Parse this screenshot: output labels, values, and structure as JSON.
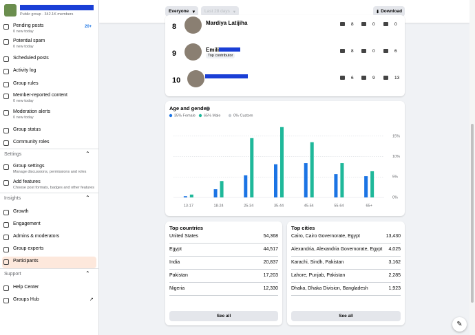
{
  "header": {
    "group_meta": "Public group · 342.1K members"
  },
  "filters": {
    "audience": "Everyone",
    "range": "Last 28 days",
    "download": "Download"
  },
  "sidebar": [
    {
      "label": "Pending posts",
      "sub": "0 new today",
      "badge": "20+"
    },
    {
      "label": "Potential spam",
      "sub": "0 new today"
    },
    {
      "label": "Scheduled posts"
    },
    {
      "label": "Activity log"
    },
    {
      "label": "Group rules"
    },
    {
      "label": "Member-reported content",
      "sub": "0 new today"
    },
    {
      "label": "Moderation alerts",
      "sub": "0 new today"
    },
    {
      "label": "Group status"
    },
    {
      "label": "Community roles"
    },
    {
      "heading": "Settings"
    },
    {
      "label": "Group settings",
      "sub": "Manage discussions, permissions and roles"
    },
    {
      "label": "Add features",
      "sub": "Choose post formats, badges and other features"
    },
    {
      "heading": "Insights"
    },
    {
      "label": "Growth"
    },
    {
      "label": "Engagement"
    },
    {
      "label": "Admins & moderators"
    },
    {
      "label": "Group experts"
    },
    {
      "label": "Participants"
    },
    {
      "heading": "Support"
    },
    {
      "label": "Help Center"
    },
    {
      "label": "Groups Hub"
    }
  ],
  "contributors": [
    {
      "rank": "8",
      "name": "Mardiya Latijiha",
      "posts": "8",
      "comments": "0",
      "reactions": "0"
    },
    {
      "rank": "9",
      "name": "Emilia Z",
      "badge": "Top contributor",
      "posts": "8",
      "comments": "0",
      "reactions": "6"
    },
    {
      "rank": "10",
      "posts": "6",
      "comments": "9",
      "reactions": "13"
    }
  ],
  "chart_data": {
    "type": "bar",
    "title": "Age and gender",
    "categories": [
      "13-17",
      "18-24",
      "25-34",
      "35-44",
      "45-54",
      "55-64",
      "65+"
    ],
    "series": [
      {
        "name": "35% Female",
        "color": "#1b74e4",
        "values": [
          0.3,
          2.0,
          5.4,
          8.1,
          8.4,
          5.7,
          5.2
        ]
      },
      {
        "name": "65% Male",
        "color": "#1fb89a",
        "values": [
          0.7,
          4.0,
          14.5,
          17.2,
          13.5,
          8.4,
          6.4
        ]
      },
      {
        "name": "0% Custom",
        "color": "#c8ccd1",
        "values": [
          0,
          0,
          0,
          0,
          0,
          0,
          0
        ]
      }
    ],
    "ylim": [
      0,
      18
    ],
    "yticks": [
      {
        "value": 0,
        "label": "0%"
      },
      {
        "value": 5,
        "label": "5%"
      },
      {
        "value": 10,
        "label": "10%"
      },
      {
        "value": 15,
        "label": "15%"
      }
    ],
    "grid": true
  },
  "countries": {
    "title": "Top countries",
    "rows": [
      [
        "United States",
        "54,368"
      ],
      [
        "Egypt",
        "44,517"
      ],
      [
        "India",
        "20,837"
      ],
      [
        "Pakistan",
        "17,203"
      ],
      [
        "Nigeria",
        "12,330"
      ]
    ],
    "button": "See all"
  },
  "cities": {
    "title": "Top cities",
    "rows": [
      [
        "Cairo, Cairo Governorate, Egypt",
        "13,430"
      ],
      [
        "Alexandria, Alexandria Governorate, Egypt",
        "4,025"
      ],
      [
        "Karachi, Sindh, Pakistan",
        "3,162"
      ],
      [
        "Lahore, Punjab, Pakistan",
        "2,285"
      ],
      [
        "Dhaka, Dhaka Division, Bangladesh",
        "1,923"
      ]
    ],
    "button": "See all"
  }
}
